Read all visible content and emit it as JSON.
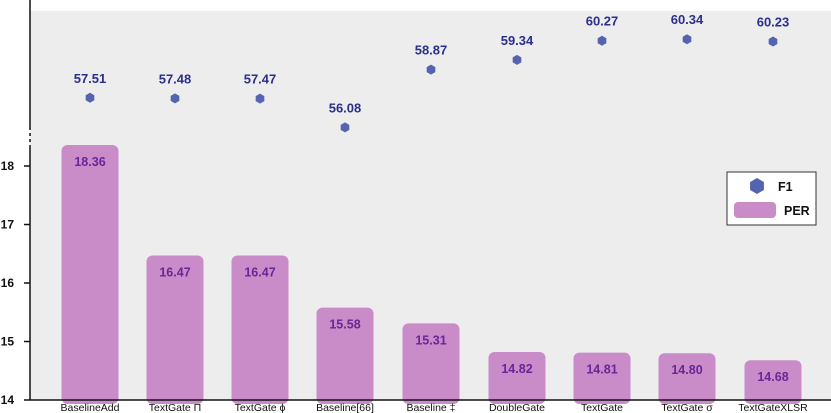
{
  "chart_data": {
    "type": "bar",
    "categories": [
      "BaselineAdd",
      "TextGate Π",
      "TextGate ϕ",
      "Baseline[66]",
      "Baseline ‡",
      "DoubleGate",
      "TextGate",
      "TextGate σ",
      "TextGateXLSR"
    ],
    "series": [
      {
        "name": "PER",
        "kind": "bar",
        "values": [
          18.36,
          16.47,
          16.47,
          15.58,
          15.31,
          14.82,
          14.81,
          14.8,
          14.68
        ]
      },
      {
        "name": "F1",
        "kind": "scatter",
        "values": [
          57.51,
          57.48,
          57.47,
          56.08,
          58.87,
          59.34,
          60.27,
          60.34,
          60.23
        ]
      }
    ],
    "per_labels": [
      "18.36",
      "16.47",
      "16.47",
      "15.58",
      "15.31",
      "14.82",
      "14.81",
      "14.80",
      "14.68"
    ],
    "f1_labels": [
      "57.51",
      "57.48",
      "57.47",
      "56.08",
      "58.87",
      "59.34",
      "60.27",
      "60.34",
      "60.23"
    ],
    "y_axis": {
      "ticks": [
        "14",
        "15",
        "16",
        "17",
        "18"
      ],
      "ylim": [
        14,
        18.4
      ],
      "broken_above": true
    },
    "legend": {
      "position": "right",
      "entries": [
        "F1",
        "PER"
      ]
    },
    "grid": false,
    "colors": {
      "bar": "#c98cc9",
      "bar_label": "#6a2596",
      "marker": "#5464b0",
      "f1_label": "#2b2f8c",
      "plot_bg": "#ededed",
      "axis": "#111111"
    }
  }
}
